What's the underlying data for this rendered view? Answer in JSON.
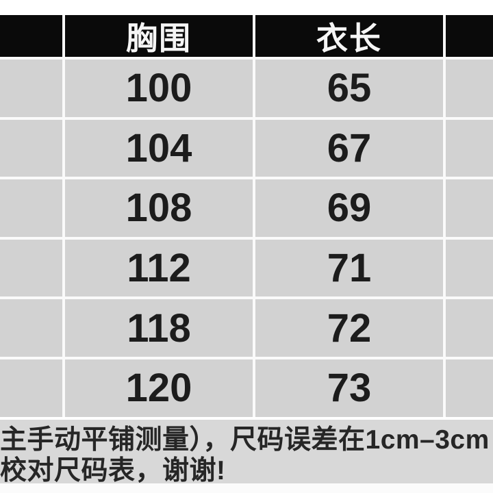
{
  "size_table": {
    "header": {
      "col1_label": "",
      "chest_label": "胸围",
      "length_label": "衣长",
      "col4_label": ""
    },
    "rows": [
      {
        "chest": "100",
        "length": "65"
      },
      {
        "chest": "104",
        "length": "67"
      },
      {
        "chest": "108",
        "length": "69"
      },
      {
        "chest": "112",
        "length": "71"
      },
      {
        "chest": "118",
        "length": "72"
      },
      {
        "chest": "120",
        "length": "73"
      }
    ],
    "colors": {
      "header_bg": "#0a0a0a",
      "header_text": "#f5f5f5",
      "cell_bg": "#d2d2d2",
      "grid_line": "#fafafa",
      "cell_text": "#1c1c1c"
    }
  },
  "footer_note": {
    "line1": "主手动平铺测量），尺码误差在1cm–3cm",
    "line2": "校对尺码表，谢谢!",
    "bg": "#d8d8d8",
    "text_color": "#262626"
  }
}
